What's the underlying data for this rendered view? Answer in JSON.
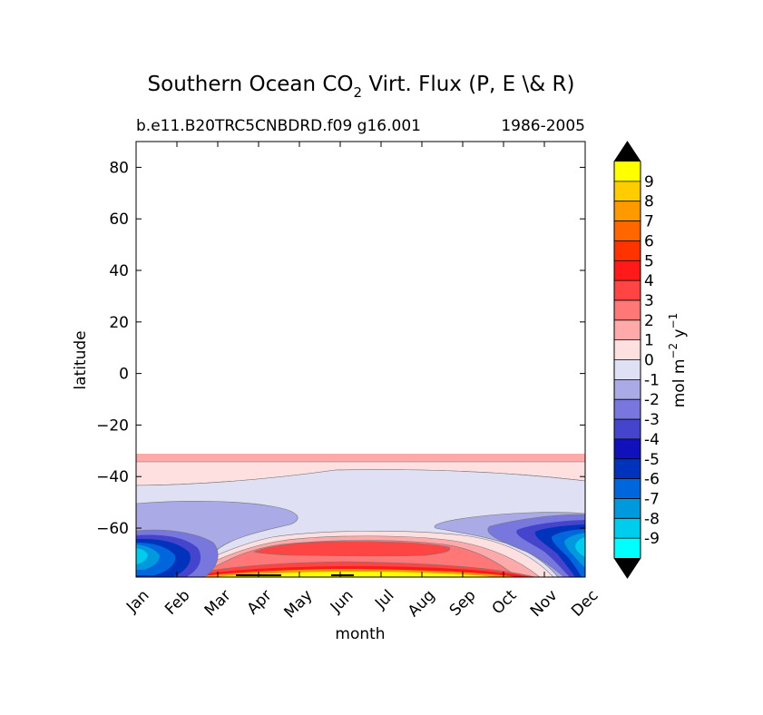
{
  "chart_data": {
    "type": "contour",
    "title": "Southern Ocean CO",
    "title_subscript": "2",
    "title_rest": " Virt. Flux (P, E \\& R)",
    "subtitle_left": "b.e11.B20TRC5CNBDRD.f09 g16.001",
    "subtitle_right": "1986-2005",
    "xlabel": "month",
    "ylabel": "latitude",
    "months": [
      "Jan",
      "Feb",
      "Mar",
      "Apr",
      "May",
      "Jun",
      "Jul",
      "Aug",
      "Sep",
      "Oct",
      "Nov",
      "Dec"
    ],
    "xlim": [
      0,
      11
    ],
    "ylim": [
      -79,
      90
    ],
    "yticks": [
      80,
      60,
      40,
      20,
      0,
      -20,
      -40,
      -60
    ],
    "ytick_labels": [
      "80",
      "60",
      "40",
      "20",
      "0",
      "−20",
      "−40",
      "−60"
    ],
    "colorbar": {
      "label_base": "mol m",
      "label_exp1": "−2",
      "label_mid": " y",
      "label_exp2": "−1",
      "levels": [
        10,
        9,
        8,
        7,
        6,
        5,
        4,
        3,
        2,
        1,
        0,
        -1,
        -2,
        -3,
        -4,
        -5,
        -6,
        -7,
        -8,
        -9,
        -10
      ],
      "tick_labels": [
        "9",
        "8",
        "7",
        "6",
        "5",
        "4",
        "3",
        "2",
        "1",
        "0",
        "-1",
        "-2",
        "-3",
        "-4",
        "-5",
        "-6",
        "-7",
        "-8",
        "-9"
      ],
      "colors": [
        "#ffff00",
        "#ffcc00",
        "#ff9900",
        "#ff6600",
        "#ff3300",
        "#ff1a1a",
        "#ff4444",
        "#ff7777",
        "#ffaaaa",
        "#ffe0e0",
        "#e0e0f5",
        "#aaaae6",
        "#7777dd",
        "#4444cc",
        "#1111bb",
        "#0033bb",
        "#0066dd",
        "#0099dd",
        "#00ccee",
        "#00ffff"
      ],
      "over_color": "#000000",
      "under_color": "#000000"
    },
    "regions": [
      {
        "name": "zero-to-one-band",
        "level": "0 to 1",
        "color": "#ffe0e0",
        "lat_range": [
          -44,
          -34
        ]
      },
      {
        "name": "one-to-two-band",
        "level": "1 to 2",
        "color": "#ffaaaa",
        "lat_range": [
          -34,
          -31
        ]
      },
      {
        "name": "negative-zone",
        "level": "-1 to 0",
        "color": "#e0e0f5",
        "lat_range": [
          -79,
          -44
        ]
      },
      {
        "name": "positive-winter-zone",
        "level": "1 to 9",
        "month_range": [
          "Mar",
          "Oct"
        ],
        "lat_range": [
          -79,
          -63
        ]
      },
      {
        "name": "strong-negative-jan",
        "level": "-9 to -2",
        "month_range": [
          "Jan",
          "Mar"
        ]
      },
      {
        "name": "strong-negative-dec",
        "level": "-9 to -2",
        "month_range": [
          "Oct",
          "Dec"
        ]
      }
    ]
  }
}
